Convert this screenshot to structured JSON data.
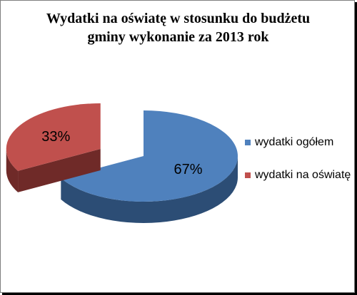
{
  "chart_data": {
    "type": "pie",
    "title": "Wydatki na oświatę w stosunku do budżetu gminy wykonanie za 2013 rok",
    "title_lines": [
      "Wydatki na oświatę w stosunku do budżetu",
      "gminy wykonanie za 2013 rok"
    ],
    "slices": [
      {
        "label": "wydatki ogółem",
        "value": 67,
        "display": "67%",
        "color": "#4f81bd",
        "color_dark": "#2c4d75"
      },
      {
        "label": "wydatki na oświatę",
        "value": 33,
        "display": "33%",
        "color": "#c0504d",
        "color_dark": "#6f2a28"
      }
    ],
    "legend": {
      "position": "right",
      "items": [
        {
          "label": "wydatki ogółem",
          "color": "#4f81bd"
        },
        {
          "label": "wydatki na oświatę",
          "color": "#c0504d"
        }
      ]
    },
    "exploded_slice": "wydatki na oświatę",
    "style": "3d"
  }
}
